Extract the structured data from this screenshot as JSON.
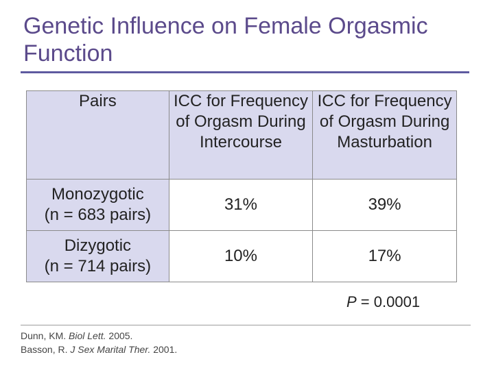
{
  "slide": {
    "title": "Genetic Influence on Female Orgasmic Function"
  },
  "table": {
    "headers": [
      "Pairs",
      "ICC for Frequency of Orgasm During Intercourse",
      "ICC for Frequency of Orgasm During Masturbation"
    ],
    "rows": [
      {
        "label_line1": "Monozygotic",
        "label_line2": "(n = 683 pairs)",
        "intercourse": "31%",
        "masturbation": "39%"
      },
      {
        "label_line1": "Dizygotic",
        "label_line2": "(n = 714 pairs)",
        "intercourse": "10%",
        "masturbation": "17%"
      }
    ]
  },
  "p_value": {
    "label": "P",
    "text": " = 0.0001"
  },
  "references": [
    {
      "author": "Dunn, KM. ",
      "journal": "Biol Lett.",
      "year": " 2005."
    },
    {
      "author": "Basson, R. ",
      "journal": "J Sex Marital Ther.",
      "year": " 2001."
    }
  ],
  "colors": {
    "title": "#5b4a8b",
    "rule": "#5e5aa0",
    "header_fill": "#d9d9ee"
  }
}
